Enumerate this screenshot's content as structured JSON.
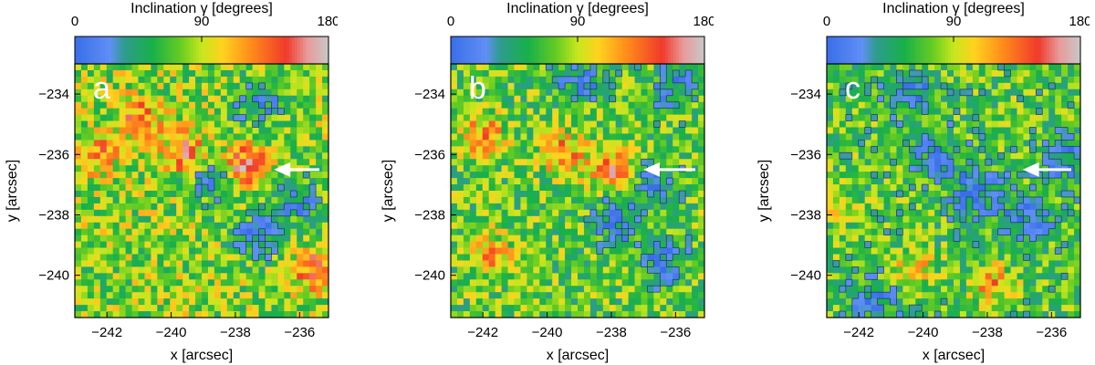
{
  "colorbar": {
    "title": "Inclination γ [degrees]",
    "tick_labels": [
      "0",
      "90",
      "180"
    ],
    "tick_values": [
      0,
      90,
      180
    ],
    "range": [
      0,
      180
    ],
    "stops": [
      {
        "v": 0,
        "color": "#3a6ee8"
      },
      {
        "v": 25,
        "color": "#5f8ff5"
      },
      {
        "v": 35,
        "color": "#2e9c8e"
      },
      {
        "v": 55,
        "color": "#18b04a"
      },
      {
        "v": 75,
        "color": "#66cc22"
      },
      {
        "v": 90,
        "color": "#c8e61e"
      },
      {
        "v": 105,
        "color": "#ffd21e"
      },
      {
        "v": 125,
        "color": "#ff8c1a"
      },
      {
        "v": 150,
        "color": "#f03a2a"
      },
      {
        "v": 165,
        "color": "#e89a9a"
      },
      {
        "v": 180,
        "color": "#c8c8c8"
      }
    ]
  },
  "panels": [
    {
      "letter": "a"
    },
    {
      "letter": "b"
    },
    {
      "letter": "c"
    }
  ],
  "axes": {
    "xlabel": "x [arcsec]",
    "ylabel": "y [arcsec]",
    "xticks": [
      -242,
      -240,
      -238,
      -236
    ],
    "xtick_labels": [
      "−242",
      "−240",
      "−238",
      "−236"
    ],
    "yticks": [
      -234,
      -236,
      -238,
      -240
    ],
    "ytick_labels": [
      "−234",
      "−236",
      "−238",
      "−240"
    ],
    "xlim": [
      -243.0,
      -235.1
    ],
    "ylim": [
      -241.4,
      -233.0
    ]
  },
  "chart_data": [
    {
      "type": "heatmap",
      "panel": "a",
      "colorbar_label": "Inclination γ [degrees]",
      "xlabel": "x [arcsec]",
      "ylabel": "y [arcsec]",
      "xlim": [
        -243.0,
        -235.1
      ],
      "ylim": [
        -241.4,
        -233.0
      ],
      "value_range": [
        0,
        180
      ],
      "arrow": {
        "from": [
          -235.1,
          -236.5
        ],
        "to": [
          -236.8,
          -236.5
        ]
      },
      "hotspots": [
        {
          "x": -241.0,
          "y": -234.8,
          "v": 140
        },
        {
          "x": -239.6,
          "y": -236.0,
          "v": 150
        },
        {
          "x": -237.7,
          "y": -236.4,
          "v": 160
        },
        {
          "x": -235.5,
          "y": -239.8,
          "v": 150
        },
        {
          "x": -242.3,
          "y": -236.0,
          "v": 130
        }
      ],
      "coldspots": [
        {
          "x": -238.8,
          "y": -236.8,
          "v": 20
        },
        {
          "x": -237.3,
          "y": -238.7,
          "v": 20
        },
        {
          "x": -236.0,
          "y": -237.5,
          "v": 25
        },
        {
          "x": -237.3,
          "y": -234.3,
          "v": 25
        }
      ],
      "background": 80
    },
    {
      "type": "heatmap",
      "panel": "b",
      "colorbar_label": "Inclination γ [degrees]",
      "xlabel": "x [arcsec]",
      "ylabel": "y [arcsec]",
      "xlim": [
        -243.0,
        -235.1
      ],
      "ylim": [
        -241.4,
        -233.0
      ],
      "value_range": [
        0,
        180
      ],
      "arrow": {
        "from": [
          -235.1,
          -236.5
        ],
        "to": [
          -237.0,
          -236.5
        ]
      },
      "hotspots": [
        {
          "x": -242.0,
          "y": -235.4,
          "v": 130
        },
        {
          "x": -239.5,
          "y": -236.0,
          "v": 135
        },
        {
          "x": -237.9,
          "y": -236.5,
          "v": 145
        },
        {
          "x": -241.8,
          "y": -239.3,
          "v": 120
        }
      ],
      "coldspots": [
        {
          "x": -237.8,
          "y": -238.2,
          "v": 20
        },
        {
          "x": -236.4,
          "y": -239.6,
          "v": 20
        },
        {
          "x": -236.0,
          "y": -233.7,
          "v": 20
        },
        {
          "x": -239.0,
          "y": -233.5,
          "v": 25
        },
        {
          "x": -236.6,
          "y": -236.9,
          "v": 25
        }
      ],
      "background": 70
    },
    {
      "type": "heatmap",
      "panel": "c",
      "colorbar_label": "Inclination γ [degrees]",
      "xlabel": "x [arcsec]",
      "ylabel": "y [arcsec]",
      "xlim": [
        -243.0,
        -235.1
      ],
      "ylim": [
        -241.4,
        -233.0
      ],
      "value_range": [
        0,
        180
      ],
      "arrow": {
        "from": [
          -235.1,
          -236.5
        ],
        "to": [
          -236.9,
          -236.5
        ]
      },
      "hotspots": [
        {
          "x": -242.5,
          "y": -237.8,
          "v": 95
        },
        {
          "x": -240.3,
          "y": -239.8,
          "v": 115
        },
        {
          "x": -237.8,
          "y": -240.3,
          "v": 120
        }
      ],
      "coldspots": [
        {
          "x": -240.3,
          "y": -234.0,
          "v": 20
        },
        {
          "x": -238.4,
          "y": -237.3,
          "v": 15
        },
        {
          "x": -236.8,
          "y": -238.2,
          "v": 15
        },
        {
          "x": -235.6,
          "y": -236.2,
          "v": 20
        },
        {
          "x": -239.5,
          "y": -236.0,
          "v": 25
        },
        {
          "x": -241.5,
          "y": -240.8,
          "v": 25
        }
      ],
      "background": 65
    }
  ]
}
